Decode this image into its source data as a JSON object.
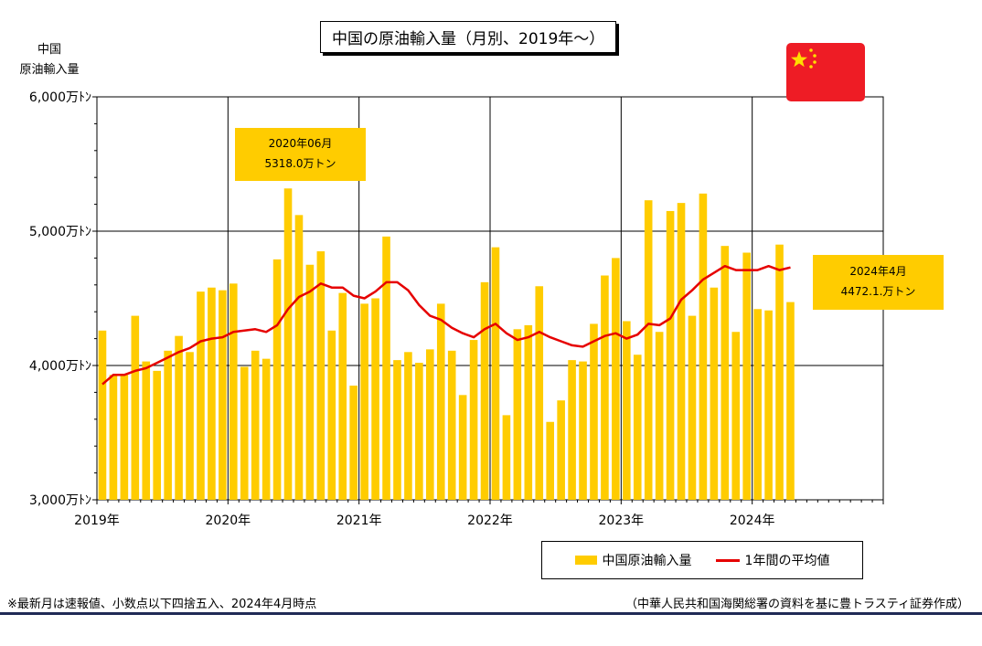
{
  "title": "中国の原油輸入量（月別、2019年～）",
  "y_axis_label": [
    "中国",
    "原油輸入量"
  ],
  "callouts": {
    "peak": {
      "line1": "2020年06月",
      "line2": "5318.0万トン"
    },
    "latest": {
      "line1": "2024年4月",
      "line2": "4472.1.万トン"
    }
  },
  "legend": {
    "bars": "中国原油輸入量",
    "line": "1年間の平均値"
  },
  "footnote": "※最新月は速報値、小数点以下四捨五入、2024年4月時点",
  "source": "（中華人民共和国海関総署の資料を基に豊トラスティ証券作成）",
  "colors": {
    "bar": "#ffcc00",
    "line": "#e60000",
    "rule": "#1f2a55",
    "flag": "#ee1c25",
    "flag_star": "#ffde00"
  },
  "icons": {
    "flag": "china-flag-icon"
  },
  "chart_data": {
    "type": "bar",
    "y_tick_labels": [
      "3,000万ﾄﾝ",
      "4,000万ﾄﾝ",
      "5,000万ﾄﾝ",
      "6,000万ﾄﾝ"
    ],
    "y_ticks": [
      3000,
      4000,
      5000,
      6000
    ],
    "ylim": [
      3000,
      6000
    ],
    "y_unit": "万トン",
    "x_tick_labels": [
      "2019年",
      "2020年",
      "2021年",
      "2022年",
      "2023年",
      "2024年"
    ],
    "x_slots": 72,
    "grid": true,
    "legend_position": "bottom-right",
    "categories": [
      "2019-01",
      "2019-02",
      "2019-03",
      "2019-04",
      "2019-05",
      "2019-06",
      "2019-07",
      "2019-08",
      "2019-09",
      "2019-10",
      "2019-11",
      "2019-12",
      "2020-01",
      "2020-02",
      "2020-03",
      "2020-04",
      "2020-05",
      "2020-06",
      "2020-07",
      "2020-08",
      "2020-09",
      "2020-10",
      "2020-11",
      "2020-12",
      "2021-01",
      "2021-02",
      "2021-03",
      "2021-04",
      "2021-05",
      "2021-06",
      "2021-07",
      "2021-08",
      "2021-09",
      "2021-10",
      "2021-11",
      "2021-12",
      "2022-01",
      "2022-02",
      "2022-03",
      "2022-04",
      "2022-05",
      "2022-06",
      "2022-07",
      "2022-08",
      "2022-09",
      "2022-10",
      "2022-11",
      "2022-12",
      "2023-01",
      "2023-02",
      "2023-03",
      "2023-04",
      "2023-05",
      "2023-06",
      "2023-07",
      "2023-08",
      "2023-09",
      "2023-10",
      "2023-11",
      "2023-12",
      "2024-01",
      "2024-02",
      "2024-03",
      "2024-04"
    ],
    "series": [
      {
        "name": "中国原油輸入量",
        "kind": "bar",
        "values": [
          4260,
          3930,
          3930,
          4370,
          4030,
          3960,
          4110,
          4220,
          4100,
          4550,
          4580,
          4560,
          4610,
          3990,
          4110,
          4050,
          4790,
          5318,
          5120,
          4750,
          4850,
          4260,
          4540,
          3850,
          4460,
          4500,
          4960,
          4040,
          4100,
          4020,
          4120,
          4460,
          4110,
          3780,
          4190,
          4620,
          4880,
          3630,
          4270,
          4300,
          4590,
          3580,
          3740,
          4040,
          4030,
          4310,
          4670,
          4800,
          4330,
          4080,
          5230,
          4250,
          5150,
          5210,
          4370,
          5280,
          4580,
          4890,
          4250,
          4840,
          4420,
          4410,
          4900,
          4472.1
        ]
      },
      {
        "name": "1年間の平均値",
        "kind": "line",
        "values": [
          3860,
          3930,
          3930,
          3960,
          3980,
          4020,
          4060,
          4100,
          4130,
          4180,
          4200,
          4210,
          4250,
          4260,
          4270,
          4250,
          4300,
          4420,
          4510,
          4550,
          4610,
          4580,
          4580,
          4520,
          4500,
          4550,
          4620,
          4620,
          4560,
          4450,
          4370,
          4340,
          4280,
          4240,
          4210,
          4270,
          4310,
          4240,
          4190,
          4210,
          4250,
          4210,
          4180,
          4150,
          4140,
          4180,
          4220,
          4240,
          4200,
          4230,
          4310,
          4300,
          4350,
          4490,
          4560,
          4640,
          4690,
          4740,
          4710,
          4710,
          4710,
          4740,
          4710,
          4730
        ]
      }
    ]
  }
}
